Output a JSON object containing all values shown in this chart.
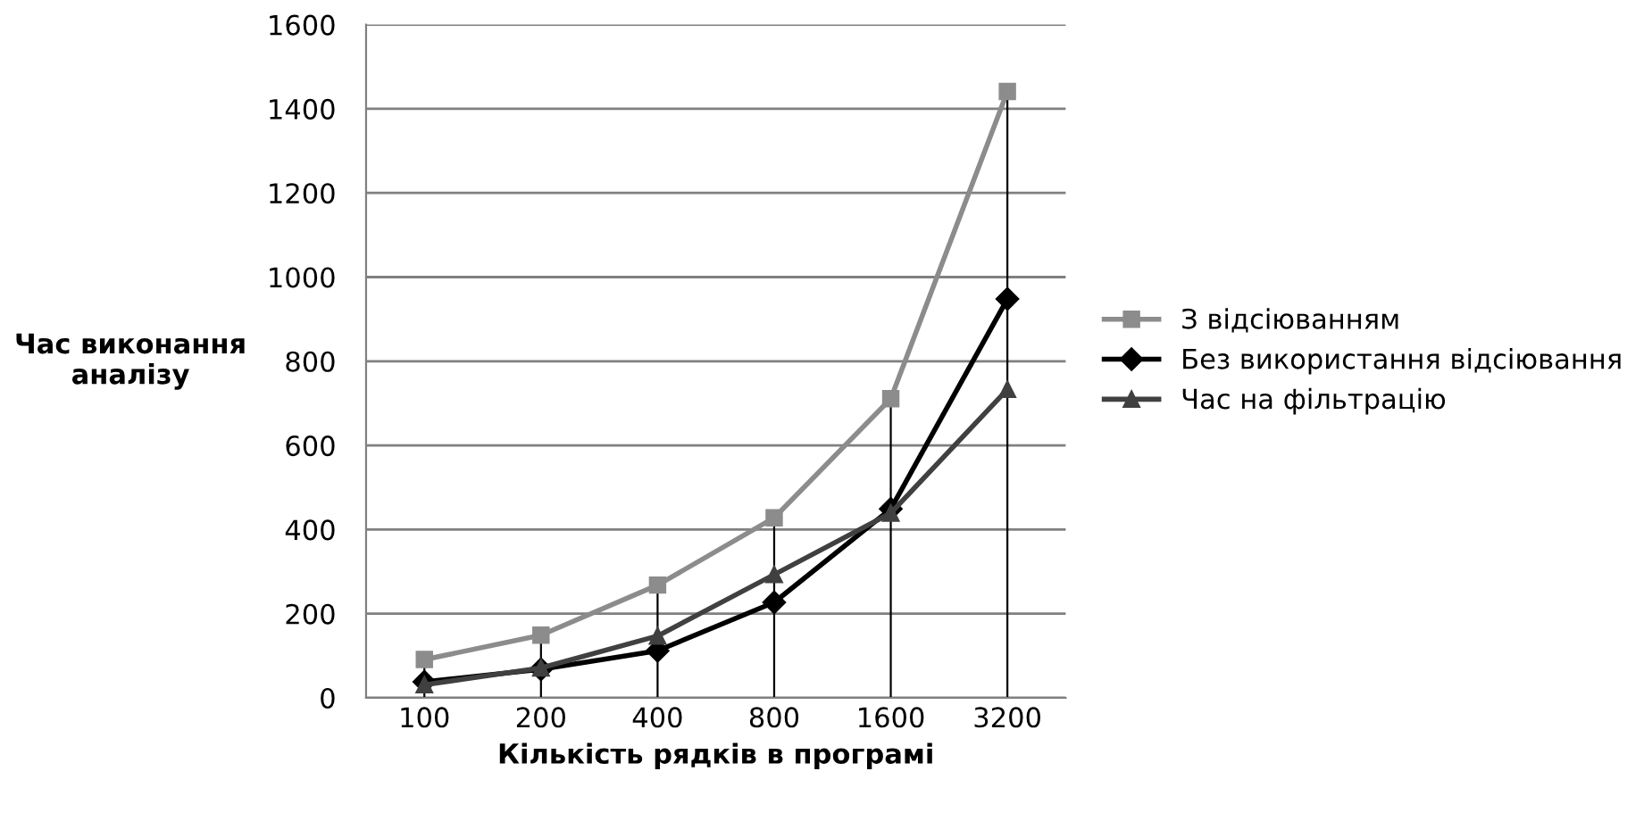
{
  "chart_data": {
    "type": "line",
    "xlabel": "Кількість рядків в програмі",
    "ylabel": "Час виконання\nаналізу",
    "categories": [
      "100",
      "200",
      "400",
      "800",
      "1600",
      "3200"
    ],
    "series": [
      {
        "name": "З відсіюванням",
        "color": "#8c8c8c",
        "marker": "square",
        "values": [
          91,
          149,
          268,
          428,
          711,
          1441
        ],
        "errors": [
          [
            0,
            91
          ],
          [
            0,
            149
          ],
          [
            0,
            268
          ],
          [
            0,
            428
          ],
          [
            0,
            711
          ],
          [
            0,
            1441
          ]
        ]
      },
      {
        "name": "Без використання відсіювання",
        "color": "#000000",
        "marker": "diamond",
        "values": [
          38,
          68,
          112,
          227,
          449,
          948
        ]
      },
      {
        "name": "Час на фільтрацію",
        "color": "#404040",
        "marker": "triangle",
        "values": [
          31,
          71,
          147,
          293,
          439,
          733
        ]
      }
    ],
    "ylim": [
      0,
      1600
    ],
    "yticks": [
      0,
      200,
      400,
      600,
      800,
      1000,
      1200,
      1400,
      1600
    ],
    "grid": "y",
    "legend": "right"
  }
}
